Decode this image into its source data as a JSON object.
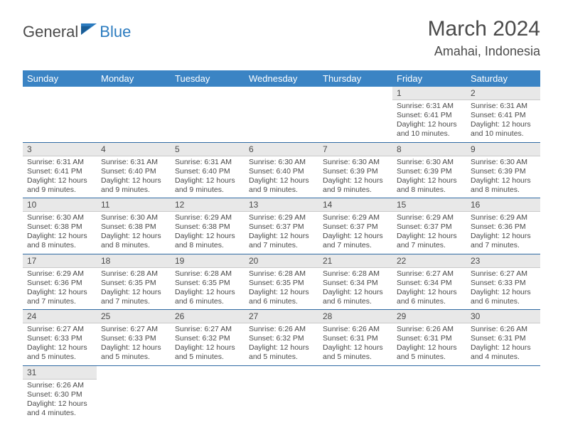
{
  "brand": {
    "part1": "General",
    "part2": "Blue"
  },
  "title": "March 2024",
  "location": "Amahai, Indonesia",
  "colors": {
    "header_bg": "#3b84c4",
    "header_text": "#ffffff",
    "daynum_bg": "#e8e8e8",
    "week_border": "#2f6aa3",
    "text": "#4a4a4a",
    "brand_blue": "#2b7bbf"
  },
  "dayNames": [
    "Sunday",
    "Monday",
    "Tuesday",
    "Wednesday",
    "Thursday",
    "Friday",
    "Saturday"
  ],
  "weeks": [
    [
      null,
      null,
      null,
      null,
      null,
      {
        "n": "1",
        "sr": "Sunrise: 6:31 AM",
        "ss": "Sunset: 6:41 PM",
        "dl": "Daylight: 12 hours and 10 minutes."
      },
      {
        "n": "2",
        "sr": "Sunrise: 6:31 AM",
        "ss": "Sunset: 6:41 PM",
        "dl": "Daylight: 12 hours and 10 minutes."
      }
    ],
    [
      {
        "n": "3",
        "sr": "Sunrise: 6:31 AM",
        "ss": "Sunset: 6:41 PM",
        "dl": "Daylight: 12 hours and 9 minutes."
      },
      {
        "n": "4",
        "sr": "Sunrise: 6:31 AM",
        "ss": "Sunset: 6:40 PM",
        "dl": "Daylight: 12 hours and 9 minutes."
      },
      {
        "n": "5",
        "sr": "Sunrise: 6:31 AM",
        "ss": "Sunset: 6:40 PM",
        "dl": "Daylight: 12 hours and 9 minutes."
      },
      {
        "n": "6",
        "sr": "Sunrise: 6:30 AM",
        "ss": "Sunset: 6:40 PM",
        "dl": "Daylight: 12 hours and 9 minutes."
      },
      {
        "n": "7",
        "sr": "Sunrise: 6:30 AM",
        "ss": "Sunset: 6:39 PM",
        "dl": "Daylight: 12 hours and 9 minutes."
      },
      {
        "n": "8",
        "sr": "Sunrise: 6:30 AM",
        "ss": "Sunset: 6:39 PM",
        "dl": "Daylight: 12 hours and 8 minutes."
      },
      {
        "n": "9",
        "sr": "Sunrise: 6:30 AM",
        "ss": "Sunset: 6:39 PM",
        "dl": "Daylight: 12 hours and 8 minutes."
      }
    ],
    [
      {
        "n": "10",
        "sr": "Sunrise: 6:30 AM",
        "ss": "Sunset: 6:38 PM",
        "dl": "Daylight: 12 hours and 8 minutes."
      },
      {
        "n": "11",
        "sr": "Sunrise: 6:30 AM",
        "ss": "Sunset: 6:38 PM",
        "dl": "Daylight: 12 hours and 8 minutes."
      },
      {
        "n": "12",
        "sr": "Sunrise: 6:29 AM",
        "ss": "Sunset: 6:38 PM",
        "dl": "Daylight: 12 hours and 8 minutes."
      },
      {
        "n": "13",
        "sr": "Sunrise: 6:29 AM",
        "ss": "Sunset: 6:37 PM",
        "dl": "Daylight: 12 hours and 7 minutes."
      },
      {
        "n": "14",
        "sr": "Sunrise: 6:29 AM",
        "ss": "Sunset: 6:37 PM",
        "dl": "Daylight: 12 hours and 7 minutes."
      },
      {
        "n": "15",
        "sr": "Sunrise: 6:29 AM",
        "ss": "Sunset: 6:37 PM",
        "dl": "Daylight: 12 hours and 7 minutes."
      },
      {
        "n": "16",
        "sr": "Sunrise: 6:29 AM",
        "ss": "Sunset: 6:36 PM",
        "dl": "Daylight: 12 hours and 7 minutes."
      }
    ],
    [
      {
        "n": "17",
        "sr": "Sunrise: 6:29 AM",
        "ss": "Sunset: 6:36 PM",
        "dl": "Daylight: 12 hours and 7 minutes."
      },
      {
        "n": "18",
        "sr": "Sunrise: 6:28 AM",
        "ss": "Sunset: 6:35 PM",
        "dl": "Daylight: 12 hours and 7 minutes."
      },
      {
        "n": "19",
        "sr": "Sunrise: 6:28 AM",
        "ss": "Sunset: 6:35 PM",
        "dl": "Daylight: 12 hours and 6 minutes."
      },
      {
        "n": "20",
        "sr": "Sunrise: 6:28 AM",
        "ss": "Sunset: 6:35 PM",
        "dl": "Daylight: 12 hours and 6 minutes."
      },
      {
        "n": "21",
        "sr": "Sunrise: 6:28 AM",
        "ss": "Sunset: 6:34 PM",
        "dl": "Daylight: 12 hours and 6 minutes."
      },
      {
        "n": "22",
        "sr": "Sunrise: 6:27 AM",
        "ss": "Sunset: 6:34 PM",
        "dl": "Daylight: 12 hours and 6 minutes."
      },
      {
        "n": "23",
        "sr": "Sunrise: 6:27 AM",
        "ss": "Sunset: 6:33 PM",
        "dl": "Daylight: 12 hours and 6 minutes."
      }
    ],
    [
      {
        "n": "24",
        "sr": "Sunrise: 6:27 AM",
        "ss": "Sunset: 6:33 PM",
        "dl": "Daylight: 12 hours and 5 minutes."
      },
      {
        "n": "25",
        "sr": "Sunrise: 6:27 AM",
        "ss": "Sunset: 6:33 PM",
        "dl": "Daylight: 12 hours and 5 minutes."
      },
      {
        "n": "26",
        "sr": "Sunrise: 6:27 AM",
        "ss": "Sunset: 6:32 PM",
        "dl": "Daylight: 12 hours and 5 minutes."
      },
      {
        "n": "27",
        "sr": "Sunrise: 6:26 AM",
        "ss": "Sunset: 6:32 PM",
        "dl": "Daylight: 12 hours and 5 minutes."
      },
      {
        "n": "28",
        "sr": "Sunrise: 6:26 AM",
        "ss": "Sunset: 6:31 PM",
        "dl": "Daylight: 12 hours and 5 minutes."
      },
      {
        "n": "29",
        "sr": "Sunrise: 6:26 AM",
        "ss": "Sunset: 6:31 PM",
        "dl": "Daylight: 12 hours and 5 minutes."
      },
      {
        "n": "30",
        "sr": "Sunrise: 6:26 AM",
        "ss": "Sunset: 6:31 PM",
        "dl": "Daylight: 12 hours and 4 minutes."
      }
    ],
    [
      {
        "n": "31",
        "sr": "Sunrise: 6:26 AM",
        "ss": "Sunset: 6:30 PM",
        "dl": "Daylight: 12 hours and 4 minutes."
      },
      null,
      null,
      null,
      null,
      null,
      null
    ]
  ]
}
